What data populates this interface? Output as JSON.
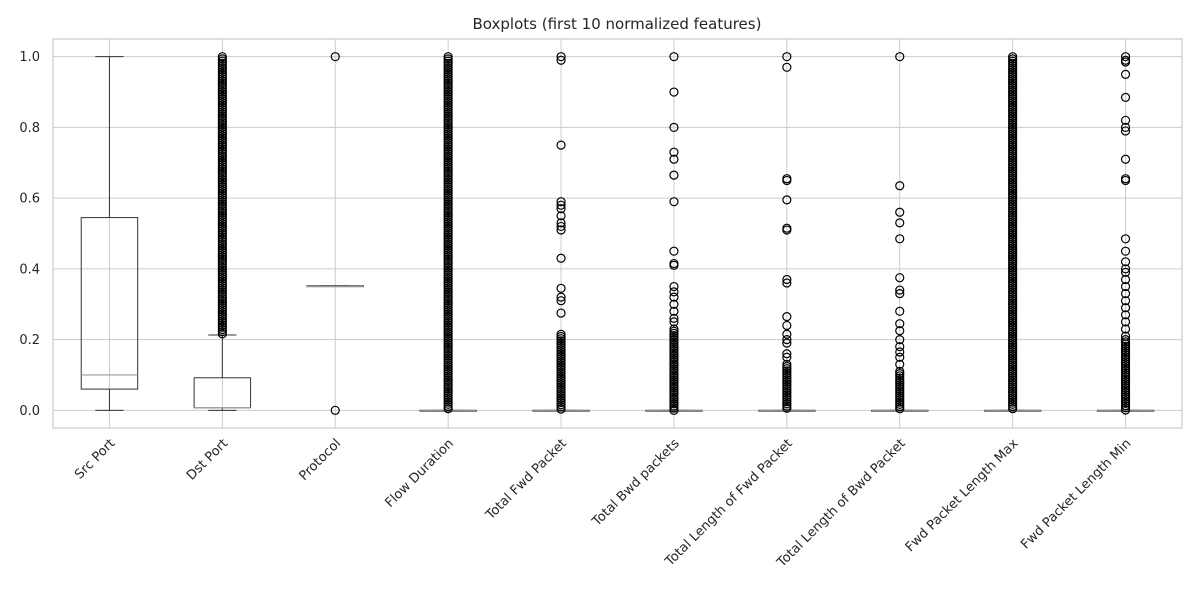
{
  "chart_data": {
    "type": "boxplot",
    "title": "Boxplots (first 10 normalized features)",
    "xlabel": "",
    "ylabel": "",
    "ylim": [
      -0.05,
      1.05
    ],
    "yticks": [
      0.0,
      0.2,
      0.4,
      0.6,
      0.8,
      1.0
    ],
    "ytick_labels": [
      "0.0",
      "0.2",
      "0.4",
      "0.6",
      "0.8",
      "1.0"
    ],
    "grid": true,
    "categories": [
      "Src Port",
      "Dst Port",
      "Protocol",
      "Flow Duration",
      "Total Fwd Packet",
      "Total Bwd packets",
      "Total Length of Fwd Packet",
      "Total Length of Bwd Packet",
      "Fwd Packet Length Max",
      "Fwd Packet Length Min"
    ],
    "boxes": [
      {
        "whislo": 0.0,
        "q1": 0.06,
        "med": 0.1,
        "q3": 0.545,
        "whishi": 1.0,
        "fliers": [],
        "dense": []
      },
      {
        "whislo": 0.0,
        "q1": 0.007,
        "med": 0.007,
        "q3": 0.092,
        "whishi": 0.213,
        "fliers": [],
        "dense": [
          [
            0.215,
            1.0
          ]
        ]
      },
      {
        "whislo": 0.35,
        "q1": 0.35,
        "med": 0.35,
        "q3": 0.352,
        "whishi": 0.352,
        "fliers": [
          0.0,
          1.0
        ],
        "dense": []
      },
      {
        "whislo": 0.0,
        "q1": 0.0,
        "med": 0.0,
        "q3": 0.0,
        "whishi": 0.0,
        "fliers": [],
        "dense": [
          [
            0.0,
            1.0
          ]
        ]
      },
      {
        "whislo": 0.0,
        "q1": 0.0,
        "med": 0.0,
        "q3": 0.0,
        "whishi": 0.0,
        "fliers": [
          1.0,
          0.99,
          0.75,
          0.59,
          0.58,
          0.57,
          0.55,
          0.53,
          0.52,
          0.51,
          0.43,
          0.345,
          0.32,
          0.31,
          0.275
        ],
        "dense": [
          [
            0.0,
            0.215
          ]
        ]
      },
      {
        "whislo": 0.0,
        "q1": 0.0,
        "med": 0.0,
        "q3": 0.0,
        "whishi": 0.0,
        "fliers": [
          1.0,
          0.9,
          0.8,
          0.73,
          0.71,
          0.665,
          0.59,
          0.45,
          0.415,
          0.41,
          0.35,
          0.335,
          0.32,
          0.3,
          0.28,
          0.26,
          0.25
        ],
        "dense": [
          [
            0.0,
            0.23
          ]
        ]
      },
      {
        "whislo": 0.0,
        "q1": 0.0,
        "med": 0.0,
        "q3": 0.0,
        "whishi": 0.0,
        "fliers": [
          1.0,
          0.97,
          0.655,
          0.65,
          0.595,
          0.515,
          0.51,
          0.37,
          0.36,
          0.265,
          0.24,
          0.215,
          0.2,
          0.19,
          0.16,
          0.15
        ],
        "dense": [
          [
            0.0,
            0.13
          ]
        ]
      },
      {
        "whislo": 0.0,
        "q1": 0.0,
        "med": 0.0,
        "q3": 0.0,
        "whishi": 0.0,
        "fliers": [
          1.0,
          0.635,
          0.56,
          0.53,
          0.485,
          0.375,
          0.34,
          0.33,
          0.28,
          0.245,
          0.225,
          0.2,
          0.18,
          0.165,
          0.15,
          0.13
        ],
        "dense": [
          [
            0.0,
            0.11
          ]
        ]
      },
      {
        "whislo": 0.0,
        "q1": 0.0,
        "med": 0.0,
        "q3": 0.0,
        "whishi": 0.0,
        "fliers": [],
        "dense": [
          [
            0.0,
            1.0
          ]
        ]
      },
      {
        "whislo": 0.0,
        "q1": 0.0,
        "med": 0.0,
        "q3": 0.0,
        "whishi": 0.0,
        "fliers": [
          1.0,
          0.99,
          0.985,
          0.95,
          0.885,
          0.82,
          0.8,
          0.79,
          0.71,
          0.655,
          0.65,
          0.485,
          0.45,
          0.42,
          0.4,
          0.39,
          0.37,
          0.35,
          0.33,
          0.31,
          0.29,
          0.27,
          0.25,
          0.23,
          0.21
        ],
        "dense": [
          [
            0.0,
            0.2
          ]
        ]
      }
    ]
  }
}
